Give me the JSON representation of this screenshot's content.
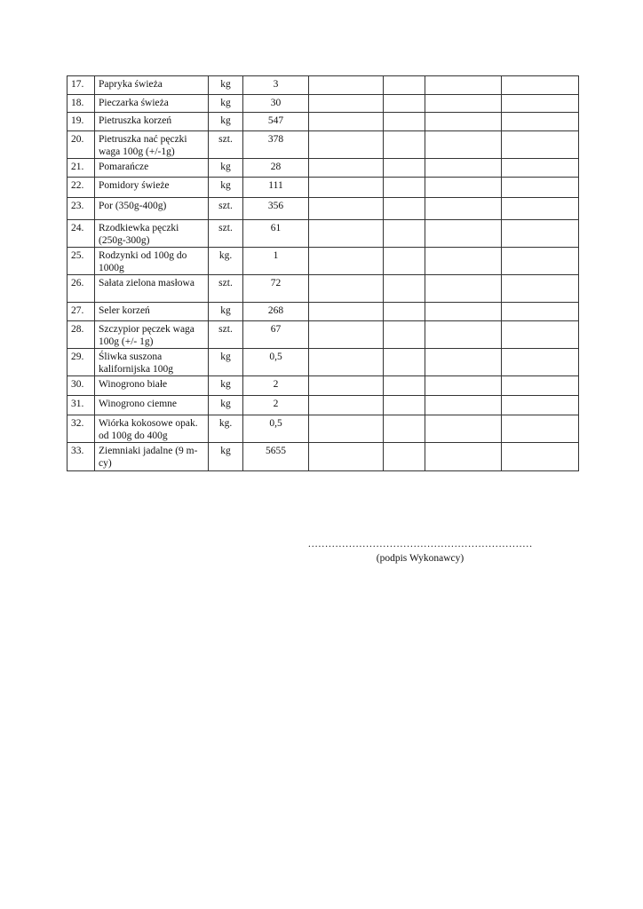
{
  "rows": [
    {
      "no": "17.",
      "name": "Papryka świeża",
      "unit": "kg",
      "qty": "3"
    },
    {
      "no": "18.",
      "name": "Pieczarka świeża",
      "unit": "kg",
      "qty": "30"
    },
    {
      "no": "19.",
      "name": "Pietruszka korzeń",
      "unit": "kg",
      "qty": "547"
    },
    {
      "no": "20.",
      "name": "Pietruszka nać pęczki waga 100g (+/-1g)",
      "unit": "szt.",
      "qty": "378"
    },
    {
      "no": "21.",
      "name": "Pomarańcze",
      "unit": "kg",
      "qty": "28"
    },
    {
      "no": "22.",
      "name": "Pomidory świeże",
      "unit": "kg",
      "qty": "111"
    },
    {
      "no": "23.",
      "name": "Por (350g-400g)",
      "unit": "szt.",
      "qty": "356"
    },
    {
      "no": "24.",
      "name": "Rzodkiewka pęczki (250g-300g)",
      "unit": "szt.",
      "qty": "61"
    },
    {
      "no": "25.",
      "name": "Rodzynki od 100g do 1000g",
      "unit": "kg.",
      "qty": "1"
    },
    {
      "no": "26.",
      "name": "Sałata zielona masłowa",
      "unit": "szt.",
      "qty": "72"
    },
    {
      "no": "27.",
      "name": "Seler korzeń",
      "unit": "kg",
      "qty": "268"
    },
    {
      "no": "28.",
      "name": "Szczypior pęczek waga 100g (+/- 1g)",
      "unit": "szt.",
      "qty": "67"
    },
    {
      "no": "29.",
      "name": "Śliwka suszona kalifornijska 100g",
      "unit": "kg",
      "qty": "0,5"
    },
    {
      "no": "30.",
      "name": "Winogrono białe",
      "unit": "kg",
      "qty": "2"
    },
    {
      "no": "31.",
      "name": "Winogrono ciemne",
      "unit": "kg",
      "qty": "2"
    },
    {
      "no": "32.",
      "name": "Wiórka kokosowe opak. od 100g do 400g",
      "unit": "kg.",
      "qty": "0,5"
    },
    {
      "no": "33.",
      "name": "Ziemniaki jadalne (9 m-cy)",
      "unit": "kg",
      "qty": "5655"
    }
  ],
  "signature": {
    "dots": "…………………………………………………………",
    "label": "(podpis Wykonawcy)"
  }
}
